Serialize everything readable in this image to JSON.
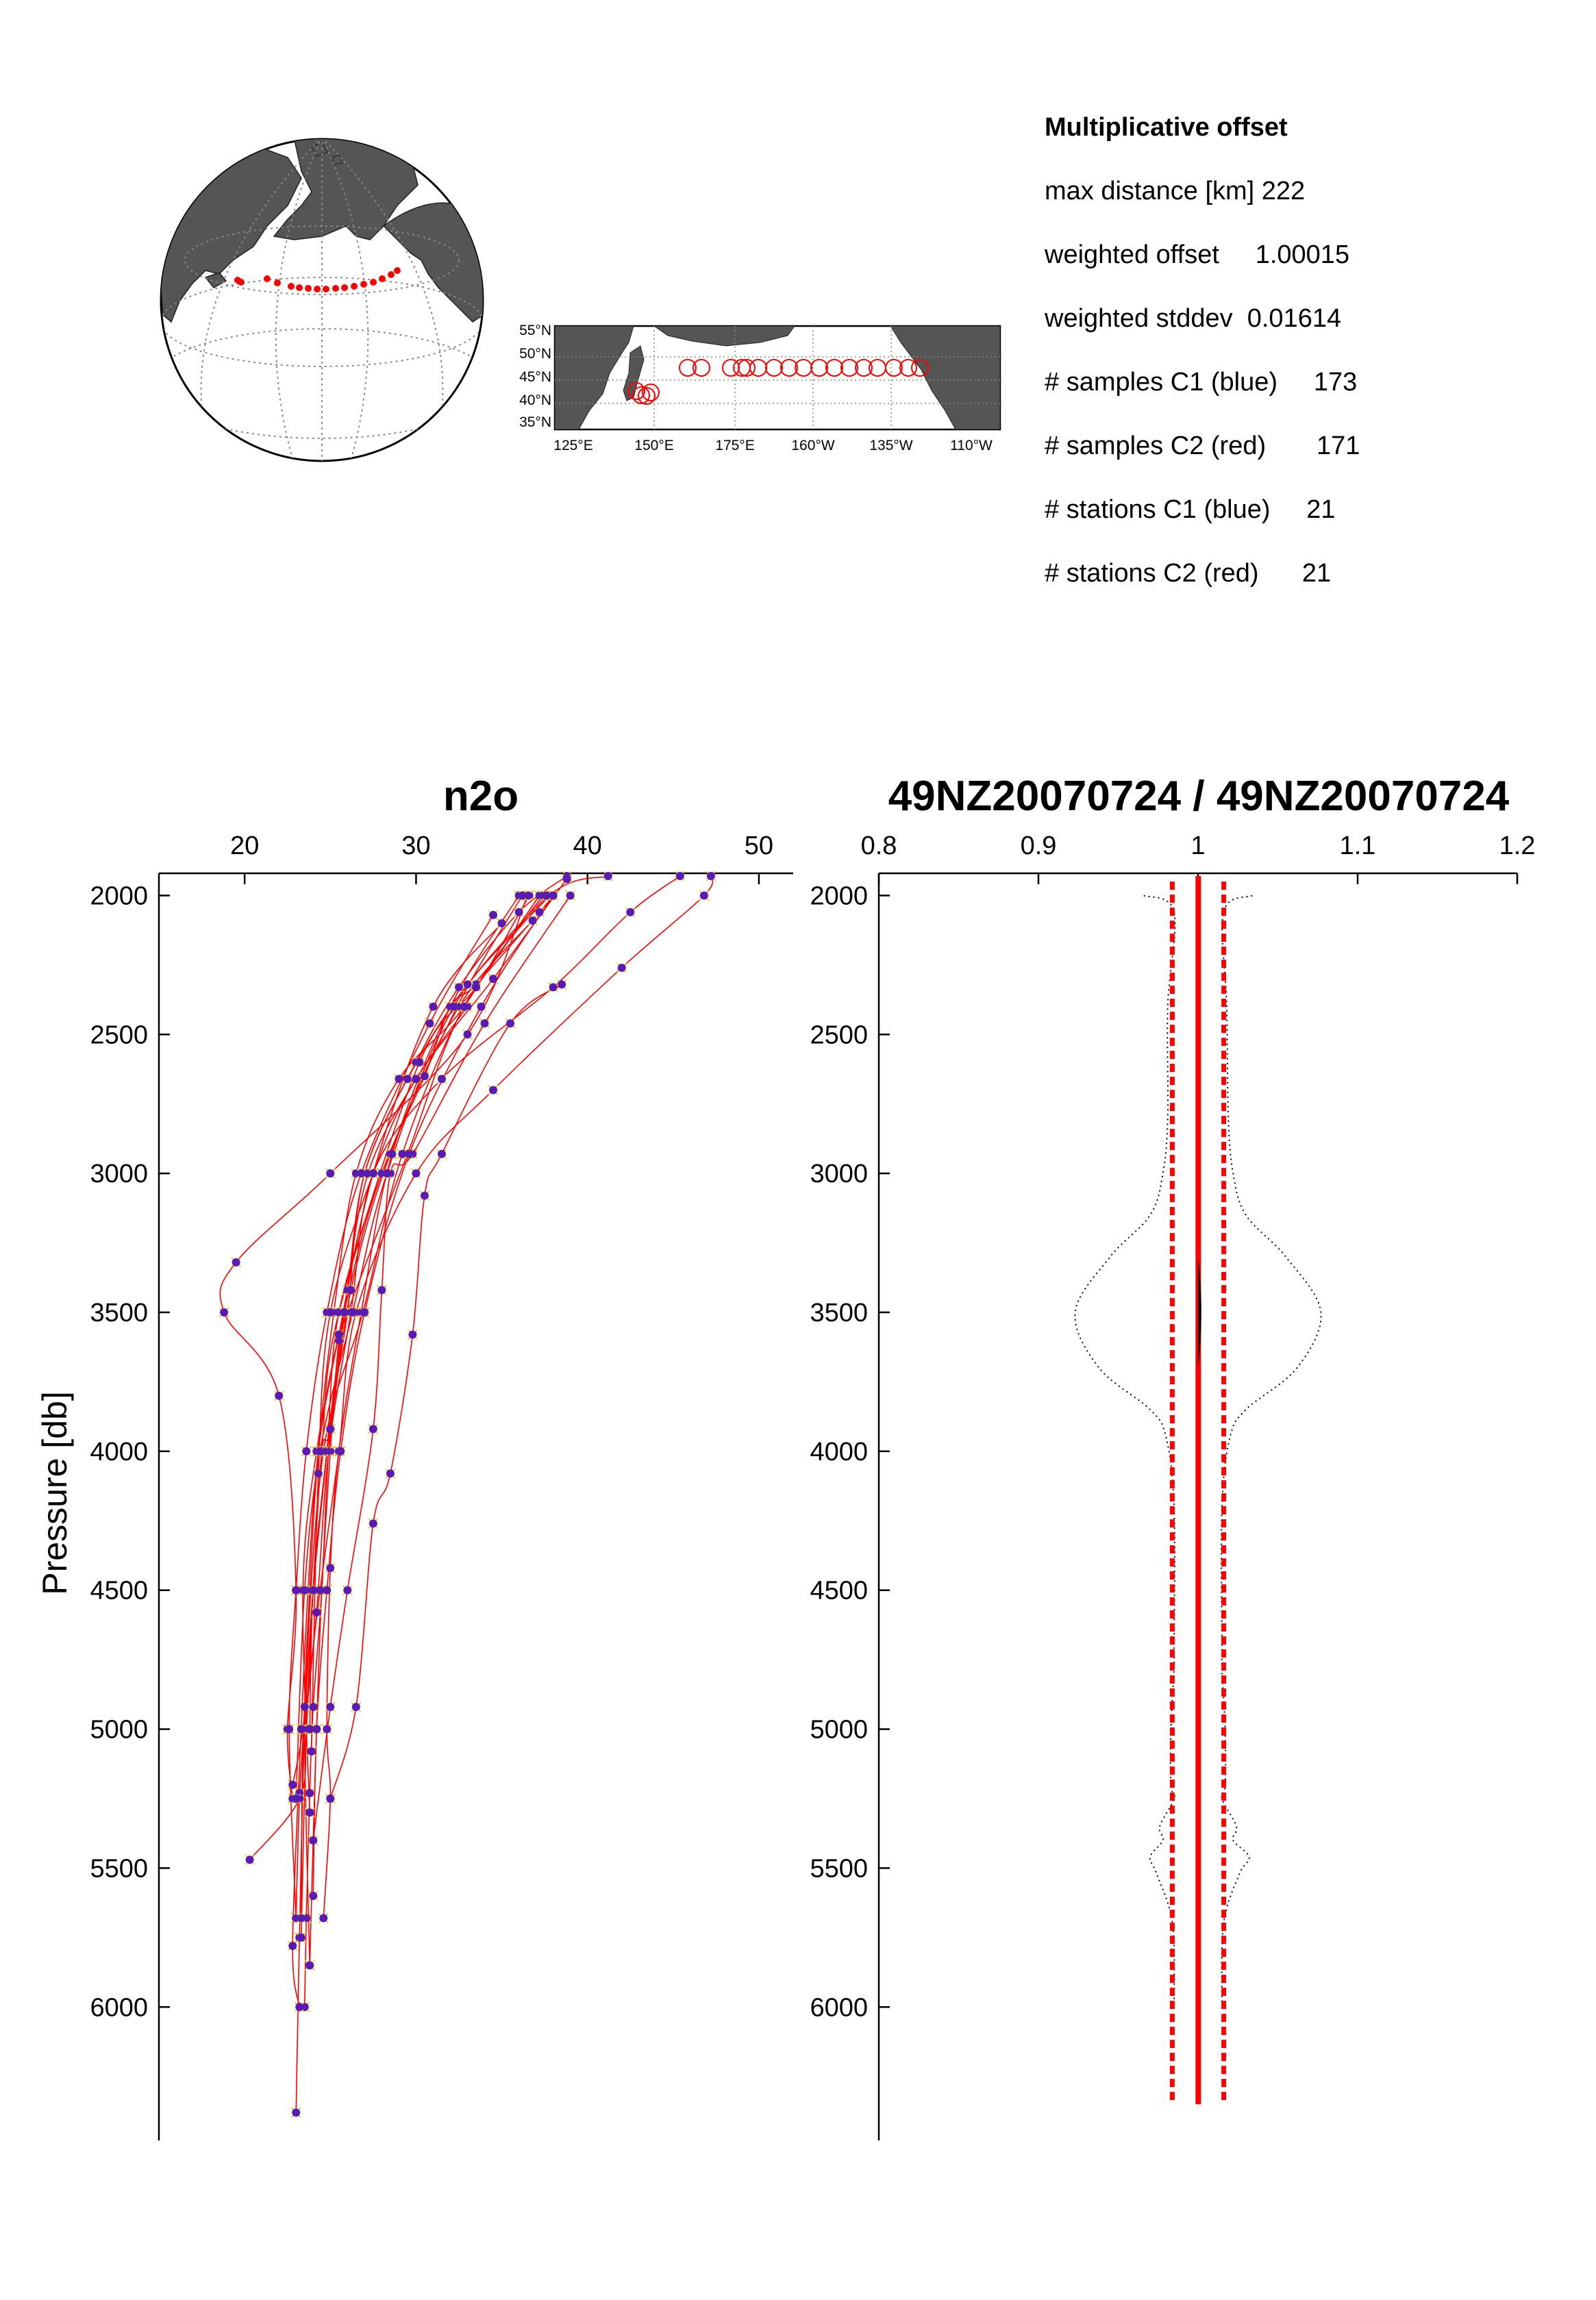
{
  "stats": {
    "title": "Multiplicative offset",
    "rows": [
      "max distance [km] 222",
      "weighted offset     1.00015",
      "weighted stddev  0.01614",
      "# samples C1 (blue)     173",
      "# samples C2 (red)       171",
      "# stations C1 (blue)     21",
      "# stations C2 (red)      21"
    ]
  },
  "map": {
    "lat_labels": [
      "55°N",
      "50°N",
      "45°N",
      "40°N",
      "35°N"
    ],
    "lon_labels": [
      "125°E",
      "150°E",
      "175°E",
      "160°W",
      "135°W",
      "110°W"
    ],
    "land_color": "#555555",
    "marker_color": "#ff0000"
  },
  "colors": {
    "c1_marker": "#5a1ab4",
    "c1_marker_edge": "#f0c020",
    "c2_line": "#ff0000",
    "offset_line": "#ff0000",
    "envelope": "#000000"
  },
  "chart_data": [
    {
      "type": "line",
      "title": "n2o",
      "xlabel": "",
      "ylabel": "Pressure  [db]",
      "xlim": [
        15,
        52
      ],
      "ylim": [
        6480,
        1920
      ],
      "y_reversed": true,
      "x_ticks": [
        "20",
        "30",
        "40",
        "50"
      ],
      "y_ticks": [
        "2000",
        "2500",
        "3000",
        "3500",
        "4000",
        "4500",
        "5000",
        "5500",
        "6000"
      ],
      "series": [
        {
          "values_x": [
            38.0,
            37.2,
            33.5,
            32.0,
            30.5,
            28.0,
            25.5,
            24.8,
            24.0,
            23.5,
            23.2,
            23.0
          ],
          "values_y": [
            2000,
            2060,
            2320,
            2400,
            2650,
            3000,
            3500,
            4000,
            4500,
            5000,
            5750,
            6380
          ]
        },
        {
          "values_x": [
            38.8,
            36.0,
            32.5,
            30.0,
            27.0,
            26.0,
            25.0,
            24.5,
            24.0,
            23.8,
            23.6,
            23.5
          ],
          "values_y": [
            1930,
            2060,
            2330,
            2600,
            3000,
            3500,
            3920,
            4500,
            4920,
            5230,
            5680,
            6000
          ]
        },
        {
          "values_x": [
            41.2,
            37.8,
            32.8,
            29.5,
            26.0,
            25.5,
            25.0,
            24.5,
            24.2,
            24.0,
            23.8
          ],
          "values_y": [
            1930,
            2000,
            2400,
            2930,
            3500,
            3600,
            4000,
            4500,
            5000,
            5400,
            5850
          ]
        },
        {
          "values_x": [
            45.4,
            42.5,
            38.0,
            31.5,
            27.5,
            26.2,
            24.9,
            24.2,
            23.5,
            23.2,
            23.0
          ],
          "values_y": [
            1930,
            2060,
            2330,
            2660,
            3000,
            3500,
            4000,
            4580,
            5000,
            5250,
            5680
          ]
        },
        {
          "values_x": [
            47.2,
            46.8,
            42.0,
            34.5,
            30.0,
            26.5,
            25.5,
            24.4,
            23.4,
            22.8
          ],
          "values_y": [
            1930,
            2000,
            2260,
            2700,
            3000,
            3500,
            4000,
            4500,
            5000,
            5200
          ]
        },
        {
          "values_x": [
            37.8,
            33.0,
            29.5,
            27.0,
            26.0,
            25.0,
            24.8,
            24.0,
            23.2
          ],
          "values_y": [
            2000,
            2320,
            2660,
            3000,
            3420,
            3920,
            4000,
            4500,
            5230
          ]
        },
        {
          "values_x": [
            36.6,
            32.8,
            29.0,
            26.5,
            25.2,
            24.3,
            23.8,
            23.5,
            23.8
          ],
          "values_y": [
            2000,
            2400,
            2660,
            3000,
            3500,
            4000,
            4500,
            5000,
            5850
          ]
        },
        {
          "values_x": [
            36.8,
            32.5,
            28.5,
            26.2,
            25.0,
            24.5,
            24.0,
            23.6,
            23.3
          ],
          "values_y": [
            2090,
            2400,
            2930,
            3420,
            3920,
            4000,
            4500,
            5000,
            5750
          ]
        },
        {
          "values_x": [
            39.0,
            34.0,
            29.8,
            28.5,
            28.0,
            27.5,
            26.0,
            25.0,
            24.0
          ],
          "values_y": [
            2000,
            2460,
            2930,
            3000,
            3420,
            3920,
            4500,
            4920,
            5400
          ]
        },
        {
          "values_x": [
            38.5,
            35.5,
            31.5,
            30.5,
            29.8,
            28.5,
            27.5,
            26.5,
            25.0
          ],
          "values_y": [
            2320,
            2460,
            2930,
            3080,
            3580,
            4080,
            4260,
            4920,
            5250
          ]
        },
        {
          "values_x": [
            36.5,
            33.0,
            25.0,
            19.5,
            18.8,
            22.0,
            23.0,
            22.5,
            22.8
          ],
          "values_y": [
            2000,
            2500,
            3000,
            3320,
            3500,
            3800,
            4500,
            5000,
            5250
          ]
        },
        {
          "values_x": [
            37.2,
            33.5,
            30.2,
            25.5,
            24.5,
            24.0,
            23.6,
            23.2,
            20.3
          ],
          "values_y": [
            2000,
            2330,
            2600,
            3500,
            4000,
            4500,
            5000,
            5250,
            5470
          ]
        },
        {
          "values_x": [
            35.0,
            31.0,
            27.5,
            25.5,
            24.3,
            23.7,
            23.3,
            22.8,
            23.2
          ],
          "values_y": [
            2100,
            2400,
            3000,
            3580,
            4000,
            4500,
            5000,
            5780,
            6000
          ]
        },
        {
          "values_x": [
            34.5,
            30.8,
            26.8,
            24.8,
            23.6,
            23.0,
            22.6,
            23.0
          ],
          "values_y": [
            2070,
            2460,
            3000,
            3500,
            4000,
            4500,
            5000,
            5680
          ]
        },
        {
          "values_x": [
            33.0,
            30.0,
            27.2,
            25.8,
            24.8,
            24.0,
            23.8
          ],
          "values_y": [
            2400,
            2660,
            3000,
            3500,
            4000,
            4500,
            5000
          ]
        },
        {
          "values_x": [
            36.0,
            32.0,
            28.6,
            26.8,
            25.5,
            25.0,
            24.8,
            25.0,
            24.6
          ],
          "values_y": [
            2000,
            2400,
            2930,
            3500,
            4000,
            4420,
            5000,
            5250,
            5680
          ]
        },
        {
          "values_x": [
            37.4,
            32.8,
            29.2,
            26.9,
            24.6,
            23.5,
            23.3
          ],
          "values_y": [
            2000,
            2400,
            2930,
            3500,
            4000,
            4920,
            5680
          ]
        },
        {
          "values_x": [
            38.0,
            33.8,
            29.6,
            27.0,
            25.6,
            24.8,
            24.2,
            24.0
          ],
          "values_y": [
            2000,
            2400,
            2930,
            3500,
            4000,
            4500,
            5000,
            5600
          ]
        },
        {
          "values_x": [
            36.2,
            32.4,
            28.0,
            25.8,
            24.2,
            23.4,
            23.8
          ],
          "values_y": [
            2000,
            2400,
            3000,
            3500,
            4000,
            4500,
            5300
          ]
        },
        {
          "values_x": [
            37.6,
            32.2,
            28.3,
            26.3,
            24.4,
            23.5,
            23.0
          ],
          "values_y": [
            2000,
            2400,
            3000,
            3500,
            4000,
            4500,
            5250
          ]
        },
        {
          "values_x": [
            38.8,
            34.5,
            30.0,
            27.5,
            25.0,
            24.3,
            23.9
          ],
          "values_y": [
            1940,
            2300,
            2660,
            3000,
            3500,
            4080,
            5080
          ]
        }
      ]
    },
    {
      "type": "line",
      "title": "49NZ20070724 / 49NZ20070724",
      "xlim": [
        0.8,
        1.2
      ],
      "ylim": [
        6480,
        1920
      ],
      "y_reversed": true,
      "x_ticks": [
        "0.8",
        "0.9",
        "1",
        "1.1",
        "1.2"
      ],
      "y_ticks": [
        "2000",
        "2500",
        "3000",
        "3500",
        "4000",
        "4500",
        "5000",
        "5500",
        "6000"
      ],
      "weighted_offset": 1.00015,
      "stddev_band": [
        0.98386,
        1.01614
      ],
      "envelope_left": {
        "x": [
          0.966,
          0.985,
          0.981,
          0.981,
          0.978,
          0.97,
          0.945,
          0.923,
          0.938,
          0.97,
          0.98,
          0.985,
          0.985,
          0.985,
          0.983,
          0.983,
          0.985,
          0.976,
          0.978,
          0.97,
          0.974,
          0.984,
          0.985
        ],
        "y": [
          2000,
          2060,
          2400,
          2800,
          3000,
          3150,
          3300,
          3500,
          3700,
          3850,
          3950,
          4200,
          4700,
          4780,
          5000,
          5200,
          5250,
          5350,
          5400,
          5460,
          5520,
          5700,
          6000
        ]
      },
      "envelope_right": {
        "x": [
          1.034,
          1.016,
          1.018,
          1.019,
          1.022,
          1.03,
          1.055,
          1.077,
          1.062,
          1.03,
          1.02,
          1.015,
          1.015,
          1.015,
          1.017,
          1.017,
          1.015,
          1.024,
          1.022,
          1.032,
          1.026,
          1.016,
          1.015
        ],
        "y": [
          2000,
          2060,
          2400,
          2800,
          3000,
          3150,
          3300,
          3500,
          3700,
          3850,
          3950,
          4200,
          4700,
          4780,
          5000,
          5200,
          5250,
          5350,
          5400,
          5460,
          5520,
          5700,
          6000
        ]
      }
    }
  ]
}
